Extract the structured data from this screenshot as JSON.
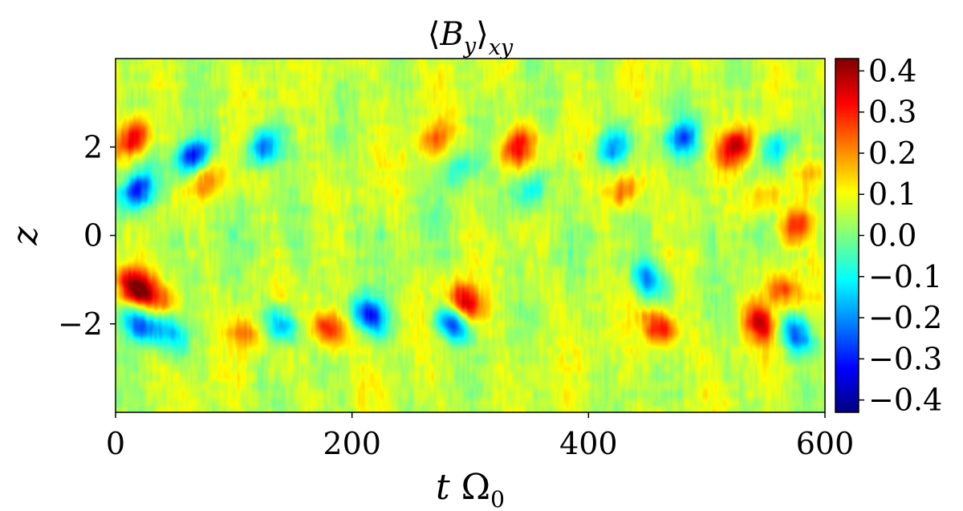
{
  "chart_data": {
    "type": "heatmap",
    "title": "⟨B_y⟩_xy",
    "xlabel": "t Ω_0",
    "ylabel": "z",
    "xlim": [
      0,
      600
    ],
    "ylim": [
      -4,
      4
    ],
    "x_ticks": [
      "0",
      "200",
      "400",
      "600"
    ],
    "x_tick_values": [
      0,
      200,
      400,
      600
    ],
    "y_ticks": [
      "−2",
      "0",
      "2"
    ],
    "y_tick_values": [
      -2,
      0,
      2
    ],
    "colormap": "jet",
    "colorbar": {
      "range": [
        -0.43,
        0.43
      ],
      "ticks": [
        "0.4",
        "0.3",
        "0.2",
        "0.1",
        "0.0",
        "−0.1",
        "−0.2",
        "−0.3",
        "−0.4"
      ],
      "tick_values": [
        0.4,
        0.3,
        0.2,
        0.1,
        0.0,
        -0.1,
        -0.2,
        -0.3,
        -0.4
      ]
    },
    "features": [
      {
        "t": 15,
        "z": 2.2,
        "value": 0.3
      },
      {
        "t": 18,
        "z": 1.0,
        "value": -0.35
      },
      {
        "t": 17,
        "z": -1.2,
        "value": 0.38
      },
      {
        "t": 20,
        "z": -2.0,
        "value": -0.3
      },
      {
        "t": 65,
        "z": 1.8,
        "value": -0.4
      },
      {
        "t": 45,
        "z": -2.2,
        "value": -0.2
      },
      {
        "t": 80,
        "z": 1.3,
        "value": 0.15
      },
      {
        "t": 40,
        "z": -1.4,
        "value": 0.18
      },
      {
        "t": 125,
        "z": 2.0,
        "value": -0.3
      },
      {
        "t": 140,
        "z": -2.0,
        "value": -0.25
      },
      {
        "t": 180,
        "z": -2.1,
        "value": 0.28
      },
      {
        "t": 110,
        "z": -2.2,
        "value": 0.15
      },
      {
        "t": 215,
        "z": -1.8,
        "value": -0.35
      },
      {
        "t": 270,
        "z": 2.2,
        "value": 0.15
      },
      {
        "t": 295,
        "z": -1.5,
        "value": 0.3
      },
      {
        "t": 285,
        "z": -2.0,
        "value": -0.3
      },
      {
        "t": 340,
        "z": 2.0,
        "value": 0.25
      },
      {
        "t": 350,
        "z": 1.0,
        "value": -0.2
      },
      {
        "t": 290,
        "z": 1.5,
        "value": -0.15
      },
      {
        "t": 420,
        "z": 2.0,
        "value": -0.25
      },
      {
        "t": 430,
        "z": 1.0,
        "value": 0.2
      },
      {
        "t": 460,
        "z": -2.1,
        "value": 0.3
      },
      {
        "t": 450,
        "z": -1.0,
        "value": -0.25
      },
      {
        "t": 480,
        "z": 2.2,
        "value": -0.28
      },
      {
        "t": 525,
        "z": 2.0,
        "value": 0.3
      },
      {
        "t": 545,
        "z": -2.0,
        "value": 0.28
      },
      {
        "t": 575,
        "z": -2.2,
        "value": -0.3
      },
      {
        "t": 565,
        "z": -1.2,
        "value": 0.22
      },
      {
        "t": 575,
        "z": 0.2,
        "value": 0.25
      },
      {
        "t": 550,
        "z": 0.8,
        "value": 0.12
      },
      {
        "t": 560,
        "z": 2.0,
        "value": -0.2
      },
      {
        "t": 590,
        "z": 1.4,
        "value": 0.12
      }
    ]
  }
}
